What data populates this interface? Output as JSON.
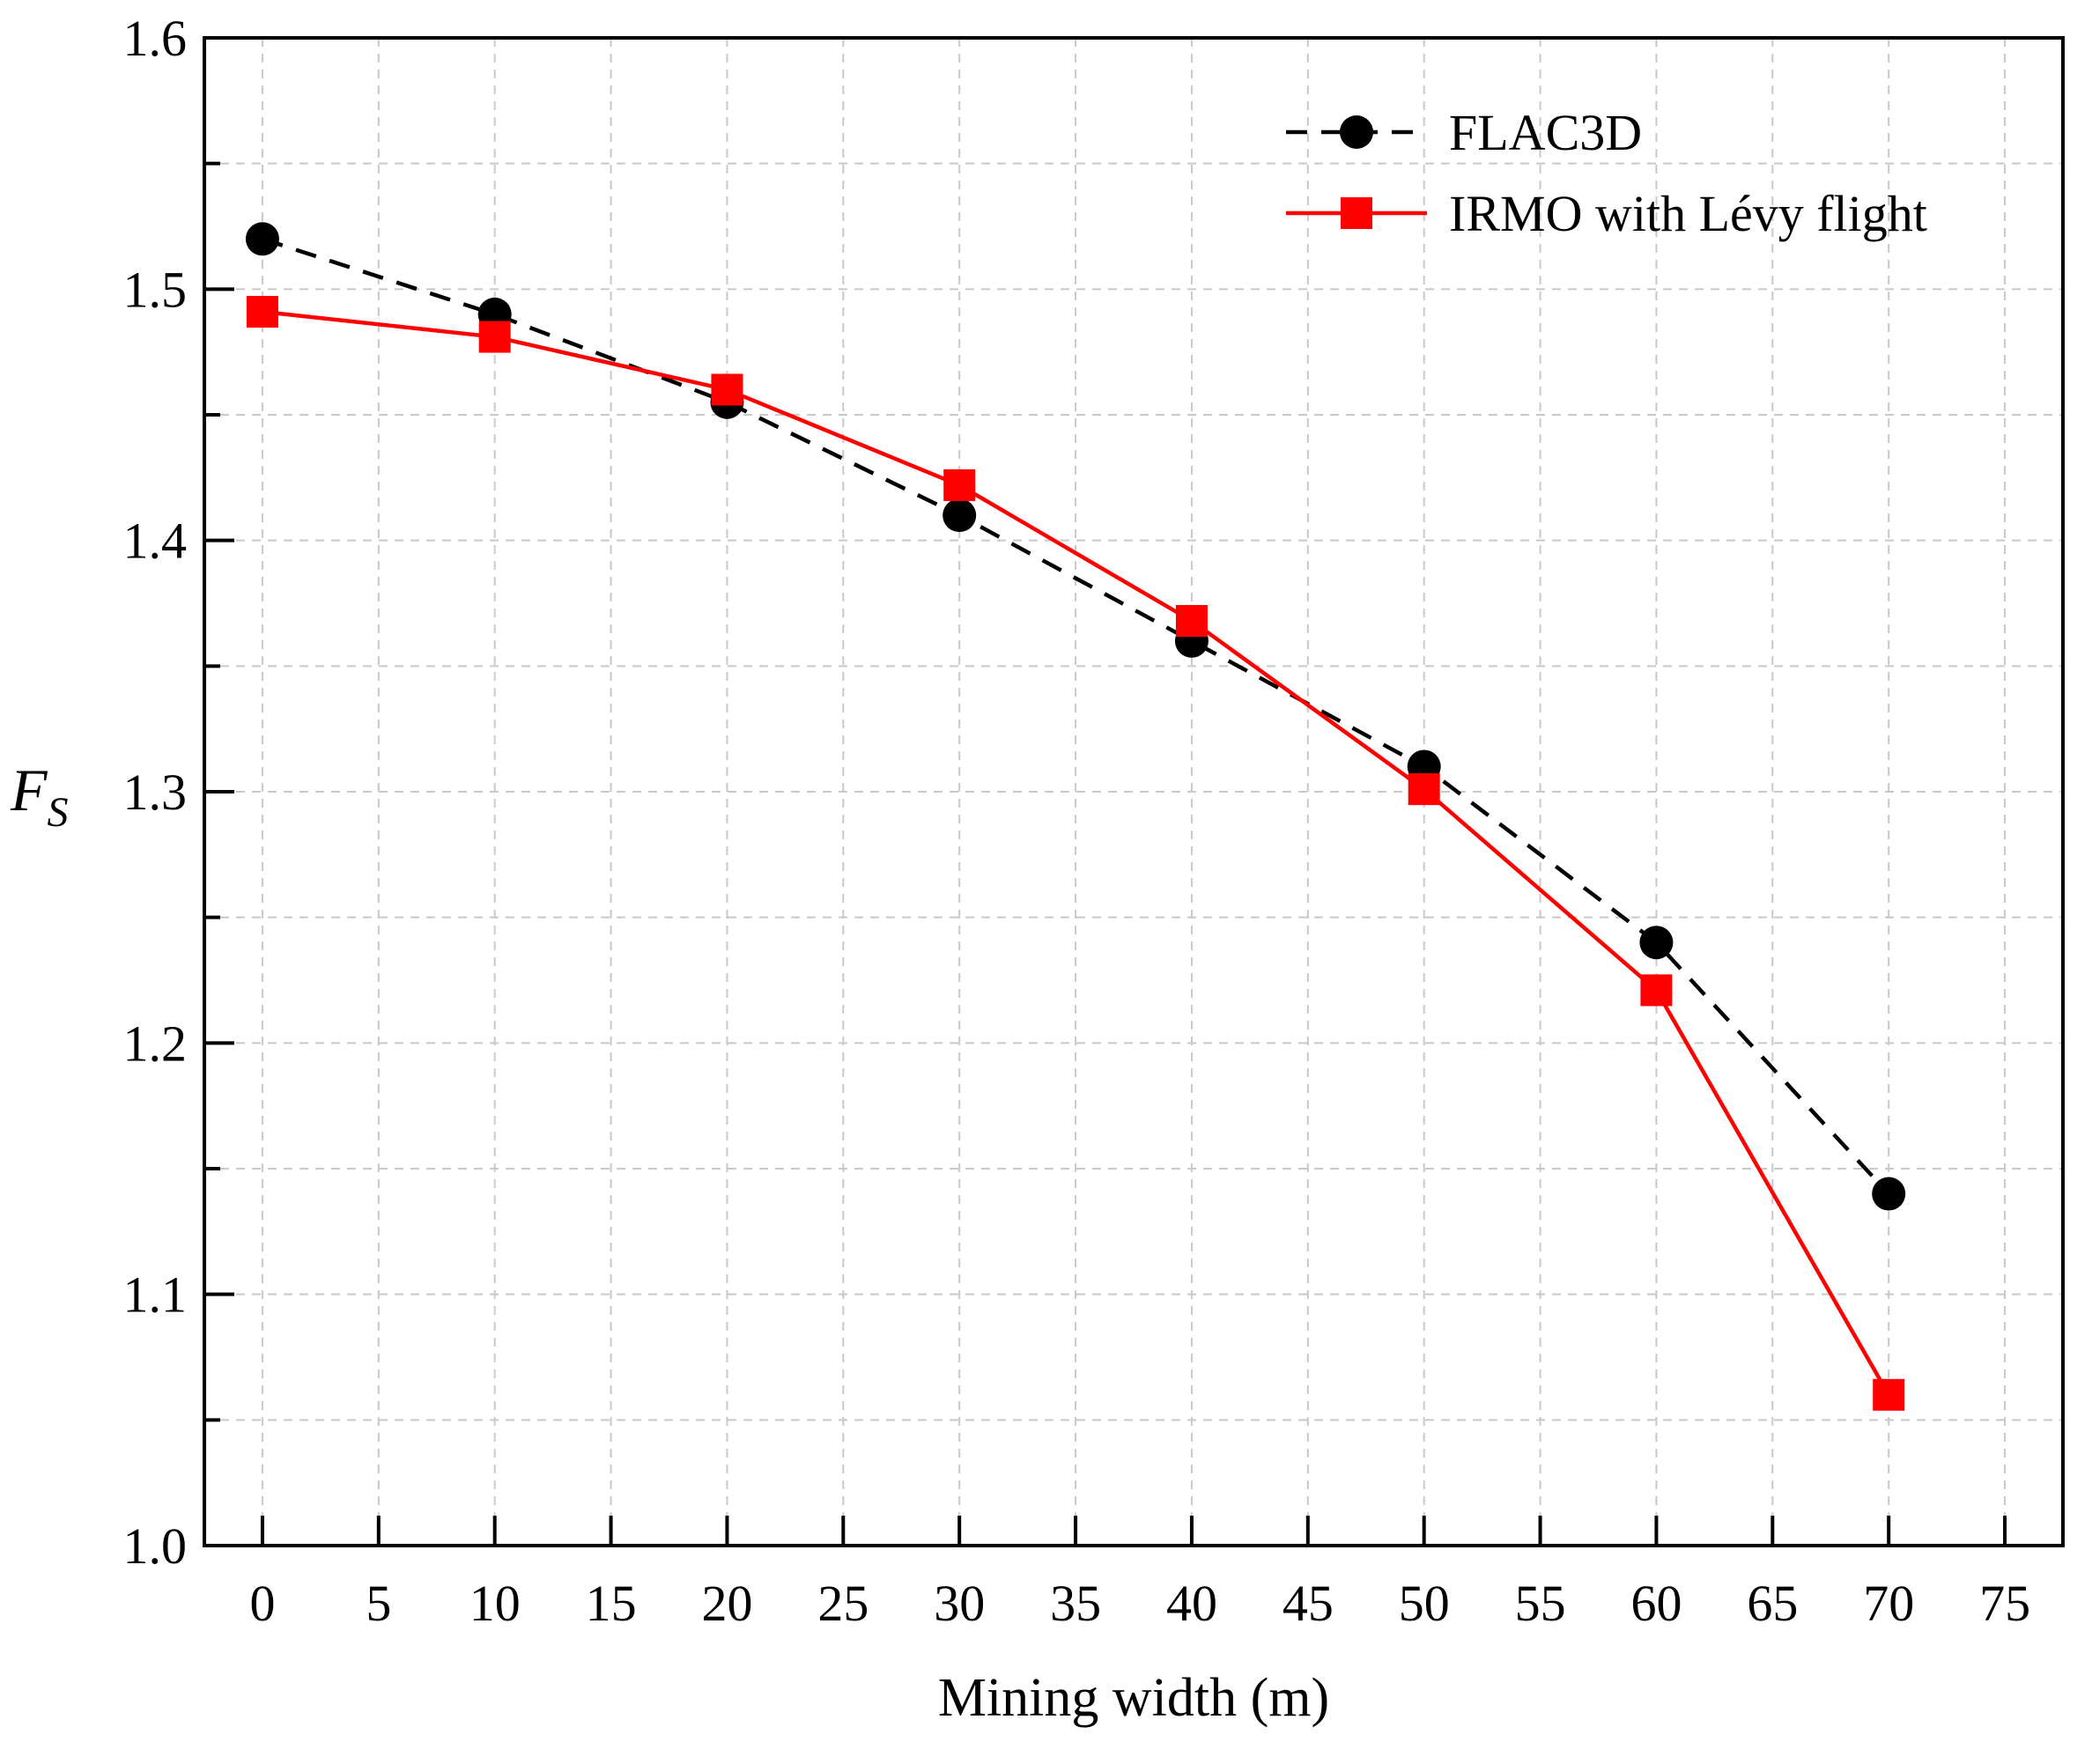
{
  "chart_data": {
    "type": "line",
    "title": "",
    "xlabel": "Mining width (m)",
    "ylabel": "F",
    "ylabel_subscript": "S",
    "xlim": [
      -2.5,
      77.5
    ],
    "ylim": [
      1.0,
      1.6
    ],
    "xticks": [
      0,
      5,
      10,
      15,
      20,
      25,
      30,
      35,
      40,
      45,
      50,
      55,
      60,
      65,
      70,
      75
    ],
    "xtick_labels": [
      "0",
      "5",
      "10",
      "15",
      "20",
      "25",
      "30",
      "35",
      "40",
      "45",
      "50",
      "55",
      "60",
      "65",
      "70",
      "75"
    ],
    "yticks": [
      1.0,
      1.1,
      1.2,
      1.3,
      1.4,
      1.5,
      1.6
    ],
    "ytick_labels": [
      "1.0",
      "1.1",
      "1.2",
      "1.3",
      "1.4",
      "1.5",
      "1.6"
    ],
    "y_minor_ticks": [
      1.05,
      1.15,
      1.25,
      1.35,
      1.45,
      1.55
    ],
    "grid": true,
    "legend_position": "top-right",
    "x": [
      0,
      10,
      20,
      30,
      40,
      50,
      60,
      70
    ],
    "series": [
      {
        "name": "FLAC3D",
        "values": [
          1.52,
          1.49,
          1.455,
          1.41,
          1.36,
          1.31,
          1.24,
          1.14
        ],
        "color": "#000000",
        "marker": "circle",
        "line_style": "dashed"
      },
      {
        "name": "IRMO with Lévy flight",
        "values": [
          1.491,
          1.481,
          1.46,
          1.422,
          1.368,
          1.301,
          1.221,
          1.06
        ],
        "color": "#ff0000",
        "marker": "square",
        "line_style": "solid"
      }
    ]
  }
}
